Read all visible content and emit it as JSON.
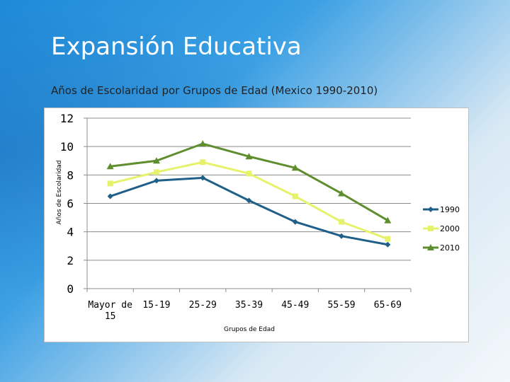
{
  "slide": {
    "title": "Expansión Educativa",
    "subtitle": "Años de Escolaridad por Grupos de Edad (Mexico 1990-2010)"
  },
  "chart_data": {
    "type": "line",
    "title": "Años de Escolaridad por Grupos de Edad (Mexico 1990-2010)",
    "xlabel": "Grupos de Edad",
    "ylabel": "Años de Escolaridad",
    "categories": [
      "Mayor de 15",
      "15-19",
      "25-29",
      "35-39",
      "45-49",
      "55-59",
      "65-69"
    ],
    "ylim": [
      0,
      12
    ],
    "yticks": [
      0,
      2,
      4,
      6,
      8,
      10,
      12
    ],
    "grid": true,
    "legend": "right",
    "series": [
      {
        "name": "1990",
        "color": "#1f5f88",
        "marker": "diamond",
        "values": [
          6.5,
          7.6,
          7.8,
          6.2,
          4.7,
          3.7,
          3.1
        ]
      },
      {
        "name": "2000",
        "color": "#e6f26b",
        "marker": "square",
        "values": [
          7.4,
          8.2,
          8.9,
          8.1,
          6.5,
          4.7,
          3.5
        ]
      },
      {
        "name": "2010",
        "color": "#5f8e2e",
        "marker": "triangle",
        "values": [
          8.6,
          9.0,
          10.2,
          9.3,
          8.5,
          6.7,
          4.8
        ]
      }
    ]
  }
}
